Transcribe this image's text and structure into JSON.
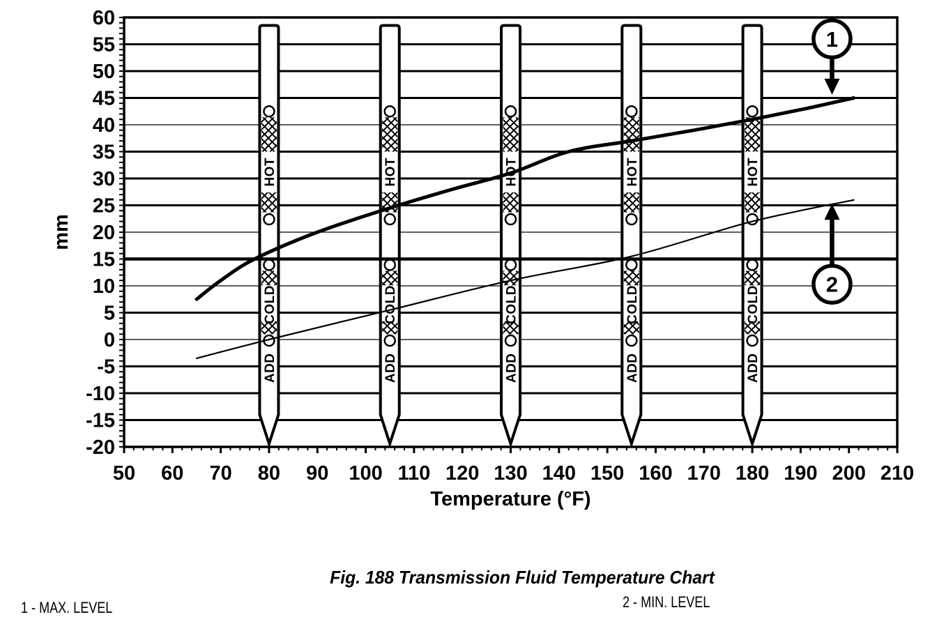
{
  "figure": {
    "caption": "Fig. 188 Transmission Fluid Temperature Chart",
    "legend": [
      {
        "text": "1 - MAX. LEVEL"
      },
      {
        "text": "2 - MIN. LEVEL"
      }
    ]
  },
  "colors": {
    "ink": "#000000",
    "paper": "#ffffff"
  },
  "chart_data": {
    "type": "line",
    "title": "Fig. 188 Transmission Fluid Temperature Chart",
    "xlabel": "Temperature (°F)",
    "ylabel": "mm",
    "xlim": [
      50,
      210
    ],
    "ylim": [
      -20,
      60
    ],
    "x_ticks": [
      50,
      60,
      70,
      80,
      90,
      100,
      110,
      120,
      130,
      140,
      150,
      160,
      170,
      180,
      190,
      200,
      210
    ],
    "x_minor_step": 2,
    "y_ticks": [
      60,
      55,
      50,
      45,
      40,
      35,
      30,
      25,
      20,
      15,
      10,
      5,
      0,
      -5,
      -10,
      -15,
      -20
    ],
    "y_minor_step": 1,
    "grid": "horizontal",
    "legend_position": "below",
    "thin_gridlines_mm": [
      40,
      20,
      10,
      0
    ],
    "emphasized_gridline_mm": 15,
    "series": [
      {
        "name": "MAX. LEVEL",
        "callout_number": "1",
        "stroke_width": 5,
        "points": [
          [
            65,
            7.5
          ],
          [
            70,
            11
          ],
          [
            77,
            15
          ],
          [
            90,
            20
          ],
          [
            105,
            24.5
          ],
          [
            118,
            28
          ],
          [
            130,
            31
          ],
          [
            142,
            35
          ],
          [
            155,
            37
          ],
          [
            168,
            39
          ],
          [
            180,
            41
          ],
          [
            191,
            43
          ],
          [
            201,
            45
          ]
        ]
      },
      {
        "name": "MIN. LEVEL",
        "callout_number": "2",
        "stroke_width": 2.2,
        "points": [
          [
            65,
            -3.5
          ],
          [
            80,
            0
          ],
          [
            105,
            5.5
          ],
          [
            130,
            11
          ],
          [
            155,
            15.5
          ],
          [
            180,
            22
          ],
          [
            201,
            26
          ]
        ]
      }
    ],
    "callouts": [
      {
        "number": "1",
        "x_f": 196.5,
        "circle_mm": 56,
        "tip_mm": 45.6,
        "direction": "down"
      },
      {
        "number": "2",
        "x_f": 196.5,
        "circle_mm": 10.3,
        "tip_mm": 25.3,
        "direction": "up"
      }
    ],
    "dipsticks": {
      "temperatures_f": [
        80,
        105,
        130,
        155,
        180
      ],
      "top_mm": 58.5,
      "taper_start_mm": -14,
      "tip_mm": -19.4,
      "zones": [
        {
          "kind": "hole",
          "mm": 42.5
        },
        {
          "kind": "hatch",
          "from_mm": 41.4,
          "to_mm": 35.0
        },
        {
          "kind": "label",
          "text": "HOT",
          "mm": 31.2
        },
        {
          "kind": "hatch",
          "from_mm": 27.4,
          "to_mm": 23.7
        },
        {
          "kind": "hole",
          "mm": 22.4
        },
        {
          "kind": "hole",
          "mm": 13.9
        },
        {
          "kind": "hatch",
          "from_mm": 12.8,
          "to_mm": 10.1
        },
        {
          "kind": "label",
          "text": "COLD",
          "mm": 6.5
        },
        {
          "kind": "hatch",
          "from_mm": 3.4,
          "to_mm": 1.0
        },
        {
          "kind": "hole",
          "mm": -0.2
        },
        {
          "kind": "label",
          "text": "ADD",
          "mm": -5.3
        }
      ]
    }
  }
}
